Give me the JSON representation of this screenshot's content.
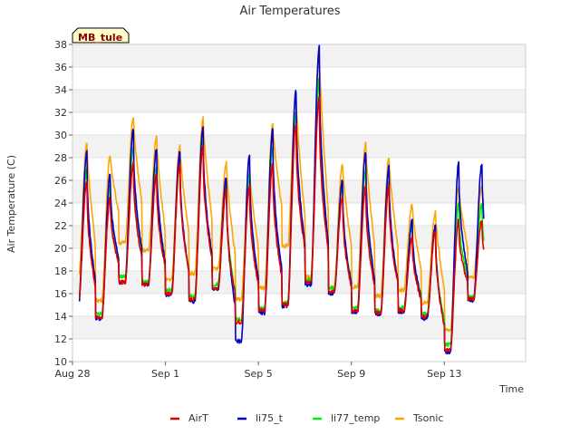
{
  "chart_data": {
    "type": "line",
    "title": "Air Temperatures",
    "xlabel": "Time",
    "ylabel": "Air Temperature (C)",
    "badge": "MB_tule",
    "ylim": [
      10,
      38
    ],
    "yticks": [
      10,
      12,
      14,
      16,
      18,
      20,
      22,
      24,
      26,
      28,
      30,
      32,
      34,
      36,
      38
    ],
    "xlim": [
      0,
      19.5
    ],
    "xticks": [
      {
        "value": 0,
        "label": "Aug 28"
      },
      {
        "value": 4,
        "label": "Sep 1"
      },
      {
        "value": 8,
        "label": "Sep 5"
      },
      {
        "value": 12,
        "label": "Sep 9"
      },
      {
        "value": 16,
        "label": "Sep 13"
      }
    ],
    "x_unit": "days since Aug 28",
    "grid": "horizontal bands",
    "legend_position": "bottom",
    "series": [
      {
        "name": "AirT",
        "color": "#dd0000"
      },
      {
        "name": "li75_t",
        "color": "#0000cc"
      },
      {
        "name": "li77_temp",
        "color": "#00ee00"
      },
      {
        "name": "Tsonic",
        "color": "#ffa500"
      }
    ],
    "daily_min": {
      "AirT": [
        15.0,
        13.9,
        17.0,
        16.8,
        16.0,
        15.5,
        16.5,
        13.5,
        14.5,
        15.0,
        17.0,
        16.2,
        14.5,
        14.3,
        14.5,
        14.0,
        11.0,
        15.5
      ],
      "li75_t": [
        14.9,
        13.8,
        17.0,
        16.8,
        15.9,
        15.3,
        16.4,
        11.8,
        14.3,
        14.9,
        16.8,
        16.0,
        14.4,
        14.2,
        14.4,
        13.8,
        10.8,
        15.4
      ],
      "li77_temp": [
        15.2,
        14.2,
        17.5,
        17.0,
        16.3,
        15.8,
        16.8,
        13.7,
        14.7,
        15.2,
        17.2,
        16.5,
        14.8,
        14.5,
        14.8,
        14.2,
        11.5,
        15.7
      ],
      "Tsonic": [
        17.2,
        15.4,
        20.5,
        19.8,
        17.2,
        17.8,
        18.2,
        15.5,
        16.5,
        20.2,
        17.5,
        16.6,
        16.6,
        15.8,
        16.3,
        15.2,
        12.8,
        17.4
      ]
    },
    "daily_max": {
      "AirT": [
        26.0,
        24.5,
        27.5,
        26.5,
        27.5,
        29.0,
        25.0,
        25.5,
        27.5,
        31.0,
        33.5,
        24.5,
        25.5,
        25.5,
        21.0,
        21.5,
        22.5
      ],
      "li75_t": [
        28.5,
        26.5,
        30.5,
        28.8,
        28.5,
        30.8,
        26.2,
        28.2,
        30.5,
        33.9,
        37.8,
        26.0,
        28.5,
        27.2,
        22.5,
        22.0,
        27.5
      ],
      "li77_temp": [
        27.0,
        25.5,
        29.0,
        27.0,
        27.5,
        29.5,
        25.5,
        26.5,
        29.0,
        32.0,
        35.0,
        25.5,
        27.0,
        26.0,
        22.0,
        21.8,
        24.0
      ],
      "Tsonic": [
        29.3,
        28.3,
        31.5,
        29.8,
        29.0,
        31.5,
        27.5,
        27.0,
        31.0,
        33.5,
        37.5,
        27.5,
        29.3,
        28.0,
        23.8,
        23.2,
        25.5
      ]
    }
  }
}
